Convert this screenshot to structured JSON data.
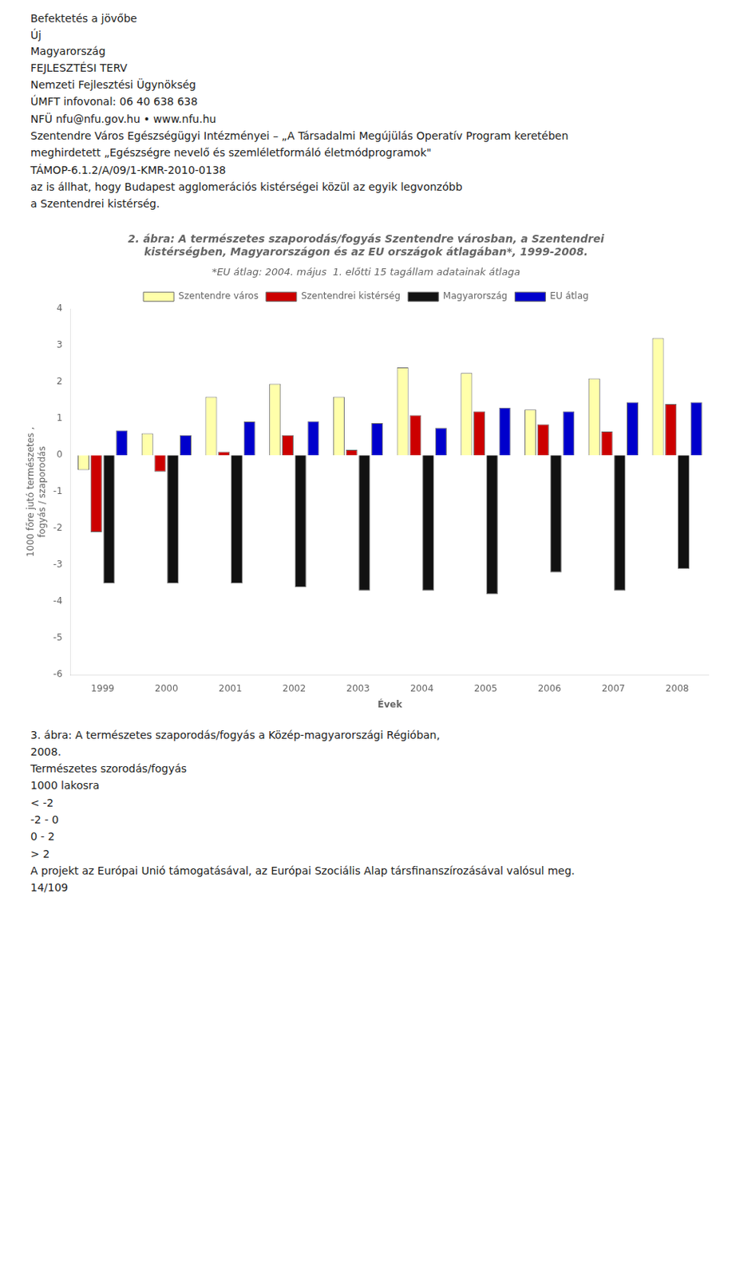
{
  "chart_data": {
    "type": "bar",
    "title": [
      "2. ábra: A természetes szaporodás/fogyás Szentendre városban, a Szentendrei",
      "kistérségben, Magyarországon és az EU országok átlagában*, 1999-2008."
    ],
    "subtitle": "*EU átlag: 2004. május  1. előtti 15 tagállam adatainak átlaga",
    "xlabel": "Évek",
    "ylabel": [
      "1000 főre jutó természetes ,",
      "fogyás / szaporodás"
    ],
    "categories": [
      "1999",
      "2000",
      "2001",
      "2002",
      "2003",
      "2004",
      "2005",
      "2006",
      "2007",
      "2008"
    ],
    "series": [
      {
        "name": "Szentendre város",
        "color": "#FFFFAA",
        "values": [
          -0.4,
          0.6,
          1.6,
          1.95,
          1.6,
          2.4,
          2.25,
          1.25,
          2.1,
          3.2
        ]
      },
      {
        "name": "Szentendrei kistérség",
        "color": "#CC0000",
        "values": [
          -2.1,
          -0.45,
          0.1,
          0.55,
          0.15,
          1.1,
          1.2,
          0.85,
          0.65,
          1.4
        ]
      },
      {
        "name": "Magyarország",
        "color": "#111111",
        "values": [
          -3.5,
          -3.5,
          -3.5,
          -3.6,
          -3.7,
          -3.7,
          -3.8,
          -3.2,
          -3.7,
          -3.1
        ]
      },
      {
        "name": "EU átlag",
        "color": "#0000CC",
        "values": [
          0.68,
          0.55,
          0.92,
          0.93,
          0.88,
          0.75,
          1.3,
          1.2,
          1.45,
          1.45
        ]
      }
    ],
    "ylim": [
      -6,
      4
    ],
    "yticks": [
      -6,
      -5,
      -4,
      -3,
      -2,
      -1,
      0,
      1,
      2,
      3,
      4
    ],
    "grid": false,
    "legend": "top",
    "annotations": [
      "Befektetés a jövőbe",
      "Új\nMagyarország",
      "FEJLESZTÉSI TERV",
      "Nemzeti Fejlesztési Ügynökség",
      "ÚMFT infovonal: 06 40 638 638",
      "NFÜ   nfu@nfu.gov.hu  •  www.nfu.hu",
      "Szentendre Város Egészségügyi Intézményei  –  „A Társadalmi Megújülás Operatív Program keretében",
      "meghirdetett „Egészségre nevelő és szemléletformáló életmódprogramok\"",
      "TÁMOP-6.1.2/A/09/1-KMR-2010-0138",
      "az is állhat, hogy Budapest agglomerációs kistérségei közül az egyik legvonzóbb",
      "a Szentendrei kistérség.",
      "3. ábra: A természetes szaporodás/fogyás a Közép-magyarországi Régióban,",
      "2008.",
      "Természetes szorodás/fogyás",
      "1000 lakosra",
      "< -2",
      "-2 - 0",
      "0 - 2",
      "> 2",
      "A projekt az Európai Unió támogatásával, az Európai Szociális Alap társfinanszírozásával valósul meg.",
      "14/109"
    ]
  }
}
